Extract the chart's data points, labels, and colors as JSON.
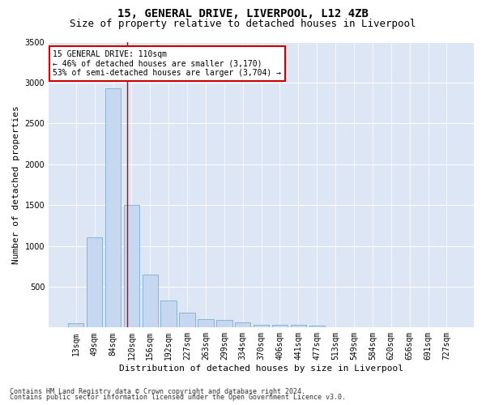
{
  "title1": "15, GENERAL DRIVE, LIVERPOOL, L12 4ZB",
  "title2": "Size of property relative to detached houses in Liverpool",
  "xlabel": "Distribution of detached houses by size in Liverpool",
  "ylabel": "Number of detached properties",
  "categories": [
    "13sqm",
    "49sqm",
    "84sqm",
    "120sqm",
    "156sqm",
    "192sqm",
    "227sqm",
    "263sqm",
    "299sqm",
    "334sqm",
    "370sqm",
    "406sqm",
    "441sqm",
    "477sqm",
    "513sqm",
    "549sqm",
    "584sqm",
    "620sqm",
    "656sqm",
    "691sqm",
    "727sqm"
  ],
  "values": [
    50,
    1100,
    2930,
    1500,
    650,
    330,
    185,
    100,
    90,
    60,
    35,
    35,
    30,
    25,
    0,
    0,
    0,
    0,
    0,
    0,
    0
  ],
  "bar_color": "#c5d8f0",
  "bar_edge_color": "#7aadd4",
  "vline_x": 2.75,
  "vline_color": "#cc0000",
  "annotation_text": "15 GENERAL DRIVE: 110sqm\n← 46% of detached houses are smaller (3,170)\n53% of semi-detached houses are larger (3,704) →",
  "annotation_box_color": "#ffffff",
  "annotation_box_edge": "#cc0000",
  "ylim": [
    0,
    3500
  ],
  "yticks": [
    0,
    500,
    1000,
    1500,
    2000,
    2500,
    3000,
    3500
  ],
  "plot_bg_color": "#dce6f5",
  "fig_bg_color": "#ffffff",
  "footer1": "Contains HM Land Registry data © Crown copyright and database right 2024.",
  "footer2": "Contains public sector information licensed under the Open Government Licence v3.0.",
  "title1_fontsize": 10,
  "title2_fontsize": 9,
  "xlabel_fontsize": 8,
  "ylabel_fontsize": 8,
  "tick_fontsize": 7,
  "footer_fontsize": 6,
  "annot_fontsize": 7
}
